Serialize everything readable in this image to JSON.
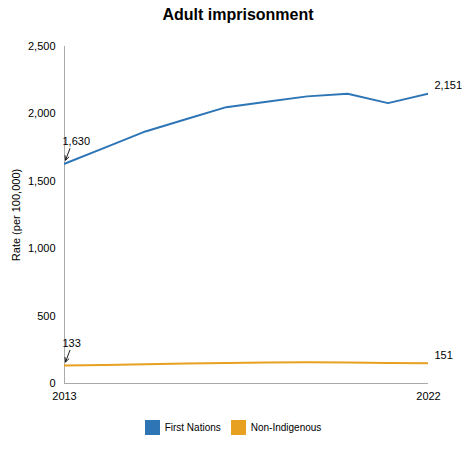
{
  "chart_data": {
    "type": "line",
    "title": "Adult imprisonment",
    "ylabel": "Rate (per 100,000)",
    "x": [
      2013,
      2014,
      2015,
      2016,
      2017,
      2018,
      2019,
      2020,
      2021,
      2022
    ],
    "series": [
      {
        "name": "First Nations",
        "color": "#2E75B6",
        "values": [
          1630,
          1750,
          1870,
          1960,
          2050,
          2090,
          2130,
          2150,
          2080,
          2151
        ]
      },
      {
        "name": "Non-Indigenous",
        "color": "#E8A020",
        "values": [
          133,
          138,
          143,
          148,
          152,
          155,
          157,
          156,
          152,
          151
        ]
      }
    ],
    "xlim": [
      2013,
      2022
    ],
    "xticks": [
      2013,
      2022
    ],
    "ylim": [
      0,
      2500
    ],
    "yticks": [
      0,
      500,
      {
        "value": 1000,
        "label": "1,000"
      },
      {
        "value": 1500,
        "label": "1,500"
      },
      {
        "value": 2000,
        "label": "2,000"
      },
      {
        "value": 2500,
        "label": "2,500"
      }
    ],
    "grid": false,
    "legend": "bottom",
    "annotations": [
      {
        "text": "1,630",
        "x": 2013,
        "y": 1630
      },
      {
        "text": "133",
        "x": 2013,
        "y": 133
      },
      {
        "text": "2,151",
        "x": 2022,
        "y": 2151
      },
      {
        "text": "151",
        "x": 2022,
        "y": 151
      }
    ]
  }
}
